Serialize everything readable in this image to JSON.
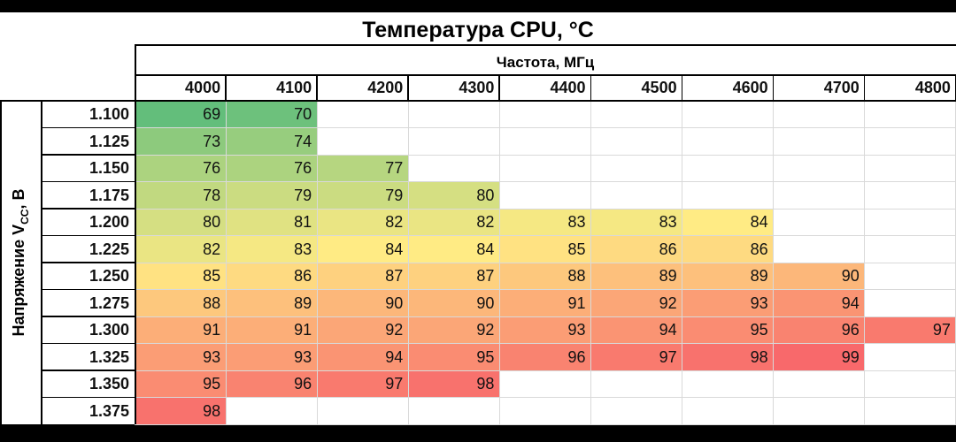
{
  "chart_data": {
    "type": "heatmap",
    "title": "Температура CPU, °C",
    "xlabel": "Частота, МГц",
    "ylabel": "Напряжение V",
    "ylabel_sub": "CC",
    "ylabel_suffix": ", В",
    "x": [
      "4000",
      "4100",
      "4200",
      "4300",
      "4400",
      "4500",
      "4600",
      "4700",
      "4800"
    ],
    "y": [
      "1.100",
      "1.125",
      "1.150",
      "1.175",
      "1.200",
      "1.225",
      "1.250",
      "1.275",
      "1.300",
      "1.325",
      "1.350",
      "1.375"
    ],
    "values": [
      [
        69,
        70,
        null,
        null,
        null,
        null,
        null,
        null,
        null
      ],
      [
        73,
        74,
        null,
        null,
        null,
        null,
        null,
        null,
        null
      ],
      [
        76,
        76,
        77,
        null,
        null,
        null,
        null,
        null,
        null
      ],
      [
        78,
        79,
        79,
        80,
        null,
        null,
        null,
        null,
        null
      ],
      [
        80,
        81,
        82,
        82,
        83,
        83,
        84,
        null,
        null
      ],
      [
        82,
        83,
        84,
        84,
        85,
        86,
        86,
        null,
        null
      ],
      [
        85,
        86,
        87,
        87,
        88,
        89,
        89,
        90,
        null
      ],
      [
        88,
        89,
        90,
        90,
        91,
        92,
        93,
        94,
        null
      ],
      [
        91,
        91,
        92,
        92,
        93,
        94,
        95,
        96,
        97
      ],
      [
        93,
        93,
        94,
        95,
        96,
        97,
        98,
        99,
        null
      ],
      [
        95,
        96,
        97,
        98,
        null,
        null,
        null,
        null,
        null
      ],
      [
        98,
        null,
        null,
        null,
        null,
        null,
        null,
        null,
        null
      ]
    ],
    "color_scale": {
      "low": "#63be7b",
      "mid": "#ffeb84",
      "high": "#f8696b"
    }
  }
}
